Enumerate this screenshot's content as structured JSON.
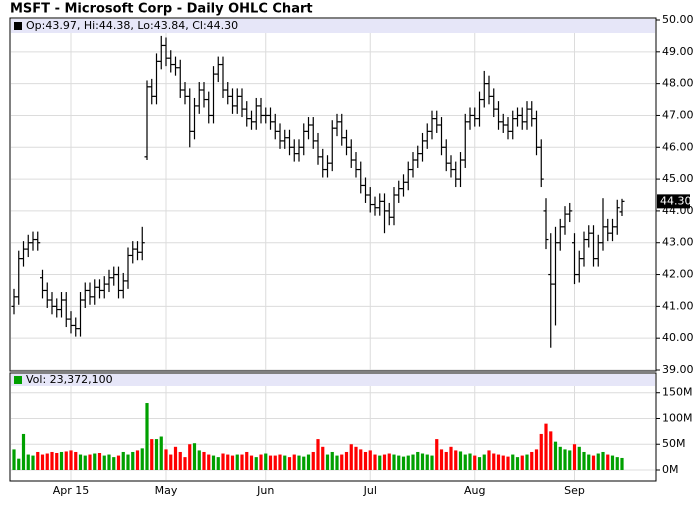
{
  "chart_data": {
    "type": "ohlc",
    "title": "MSFT - Microsoft Corp - Daily OHLC Chart",
    "info": "Op:43.97, Hi:44.38, Lo:43.84, Cl:44.30",
    "last_label": "44.30",
    "categories": [
      null,
      null,
      null,
      null,
      null,
      null,
      null,
      null,
      null,
      null,
      null,
      null,
      "Apr 15",
      null,
      null,
      null,
      null,
      null,
      null,
      null,
      null,
      null,
      null,
      null,
      null,
      null,
      null,
      null,
      null,
      null,
      null,
      null,
      "May",
      null,
      null,
      null,
      null,
      null,
      null,
      null,
      null,
      null,
      null,
      null,
      null,
      null,
      null,
      null,
      null,
      null,
      null,
      null,
      null,
      "Jun",
      null,
      null,
      null,
      null,
      null,
      null,
      null,
      null,
      null,
      null,
      null,
      null,
      null,
      null,
      null,
      null,
      null,
      null,
      null,
      null,
      null,
      "Jul",
      null,
      null,
      null,
      null,
      null,
      null,
      null,
      null,
      null,
      null,
      null,
      null,
      null,
      null,
      null,
      null,
      null,
      null,
      null,
      null,
      null,
      "Aug",
      null,
      null,
      null,
      null,
      null,
      null,
      null,
      null,
      null,
      null,
      null,
      null,
      null,
      null,
      null,
      null,
      null,
      null,
      null,
      null,
      "Sep",
      null,
      null,
      null,
      null,
      null,
      null,
      null,
      null,
      null,
      null
    ],
    "open": [
      41.0,
      41.3,
      42.5,
      42.8,
      43.0,
      43.1,
      41.9,
      41.5,
      41.2,
      41.0,
      40.9,
      41.2,
      40.6,
      40.4,
      40.3,
      41.2,
      41.5,
      41.3,
      41.6,
      41.5,
      41.7,
      41.9,
      42.0,
      41.5,
      41.8,
      42.6,
      42.8,
      42.7,
      45.7,
      47.9,
      47.6,
      48.7,
      49.2,
      48.8,
      48.6,
      48.5,
      47.8,
      47.6,
      46.5,
      47.3,
      47.8,
      47.5,
      47.0,
      48.3,
      48.6,
      47.8,
      47.6,
      47.3,
      47.6,
      47.2,
      46.9,
      46.8,
      47.3,
      47.0,
      47.0,
      46.8,
      46.5,
      46.2,
      46.3,
      46.0,
      45.8,
      46.0,
      46.5,
      46.7,
      46.2,
      45.7,
      45.3,
      45.5,
      46.6,
      46.8,
      46.3,
      46.0,
      45.6,
      45.3,
      44.8,
      44.5,
      44.2,
      44.1,
      44.3,
      44.0,
      43.8,
      44.5,
      44.7,
      44.9,
      45.3,
      45.6,
      45.8,
      46.2,
      46.5,
      46.9,
      46.7,
      46.0,
      45.5,
      45.3,
      45.0,
      45.6,
      46.8,
      47.0,
      46.9,
      47.5,
      48.0,
      47.6,
      47.2,
      46.8,
      46.7,
      46.5,
      46.9,
      47.0,
      46.8,
      47.2,
      46.9,
      46.0,
      44.0,
      42.0,
      41.7,
      43.0,
      43.5,
      43.9,
      43.0,
      42.0,
      42.5,
      43.1,
      43.3,
      42.5,
      43.0,
      43.5,
      43.3,
      43.5,
      43.97
    ],
    "high": [
      41.55,
      42.75,
      43.05,
      43.25,
      43.35,
      43.35,
      42.15,
      41.75,
      41.45,
      41.25,
      41.45,
      41.45,
      40.85,
      40.65,
      41.45,
      41.75,
      41.75,
      41.85,
      41.85,
      41.95,
      42.15,
      42.25,
      42.25,
      42.05,
      42.85,
      43.05,
      43.05,
      43.5,
      48.1,
      48.15,
      48.95,
      49.5,
      49.45,
      49.05,
      48.85,
      48.75,
      48.05,
      47.85,
      47.55,
      48.05,
      48.05,
      47.75,
      48.55,
      48.85,
      48.85,
      48.05,
      47.85,
      47.85,
      47.85,
      47.45,
      47.15,
      47.55,
      47.55,
      47.25,
      47.25,
      47.05,
      46.75,
      46.55,
      46.55,
      46.25,
      46.25,
      46.75,
      46.95,
      46.95,
      46.45,
      45.95,
      45.75,
      46.85,
      47.05,
      47.05,
      46.55,
      46.25,
      45.85,
      45.55,
      45.05,
      44.75,
      44.45,
      44.55,
      44.55,
      44.25,
      44.75,
      44.95,
      45.15,
      45.55,
      45.85,
      46.05,
      46.45,
      46.75,
      47.15,
      47.15,
      46.95,
      46.25,
      45.75,
      45.55,
      45.85,
      47.05,
      47.25,
      47.25,
      47.75,
      48.4,
      48.25,
      47.85,
      47.45,
      47.05,
      46.95,
      47.15,
      47.25,
      47.25,
      47.45,
      47.45,
      47.15,
      46.25,
      44.4,
      43.3,
      43.5,
      43.75,
      44.15,
      44.25,
      43.3,
      42.75,
      43.35,
      43.55,
      43.55,
      43.25,
      44.4,
      43.75,
      43.75,
      44.35,
      44.38
    ],
    "low": [
      40.75,
      41.05,
      42.25,
      42.55,
      42.75,
      42.75,
      41.25,
      40.95,
      40.75,
      40.65,
      40.65,
      40.35,
      40.15,
      40.05,
      40.05,
      40.95,
      41.05,
      41.05,
      41.25,
      41.25,
      41.45,
      41.65,
      41.25,
      41.25,
      41.55,
      42.35,
      42.45,
      42.45,
      45.6,
      47.35,
      47.35,
      48.45,
      48.55,
      48.35,
      48.25,
      47.55,
      47.35,
      46.0,
      46.25,
      47.05,
      47.25,
      46.75,
      46.75,
      48.05,
      47.55,
      47.35,
      47.05,
      47.05,
      46.95,
      46.65,
      46.55,
      46.55,
      46.75,
      46.75,
      46.55,
      46.25,
      45.95,
      45.95,
      45.75,
      45.55,
      45.55,
      45.75,
      46.25,
      45.95,
      45.45,
      45.05,
      45.05,
      45.25,
      46.35,
      46.05,
      45.75,
      45.35,
      45.05,
      44.55,
      44.25,
      43.95,
      43.85,
      43.85,
      43.3,
      43.55,
      43.55,
      44.25,
      44.45,
      44.65,
      45.05,
      45.35,
      45.55,
      45.95,
      46.25,
      46.45,
      45.75,
      45.25,
      45.05,
      44.75,
      44.75,
      45.35,
      46.55,
      46.65,
      46.65,
      47.25,
      47.35,
      46.95,
      46.55,
      46.45,
      46.25,
      46.25,
      46.65,
      46.55,
      46.55,
      46.65,
      45.75,
      44.75,
      42.8,
      39.7,
      40.4,
      42.75,
      43.25,
      43.65,
      41.7,
      41.75,
      42.25,
      42.85,
      42.25,
      42.25,
      42.75,
      43.05,
      43.05,
      43.25,
      43.84
    ],
    "close": [
      41.3,
      42.5,
      42.8,
      43.0,
      43.1,
      43.0,
      41.5,
      41.2,
      41.0,
      40.9,
      41.2,
      40.6,
      40.4,
      40.3,
      41.2,
      41.5,
      41.3,
      41.6,
      41.5,
      41.7,
      41.9,
      42.0,
      41.5,
      41.8,
      42.6,
      42.8,
      42.7,
      43.0,
      47.9,
      47.6,
      48.7,
      49.2,
      48.8,
      48.6,
      48.5,
      47.8,
      47.6,
      46.5,
      47.3,
      47.8,
      47.5,
      47.0,
      48.3,
      48.6,
      47.8,
      47.6,
      47.3,
      47.6,
      47.2,
      46.9,
      46.8,
      47.3,
      47.0,
      47.0,
      46.8,
      46.5,
      46.2,
      46.3,
      46.0,
      45.8,
      46.0,
      46.5,
      46.7,
      46.2,
      45.7,
      45.3,
      45.5,
      46.6,
      46.8,
      46.3,
      46.0,
      45.6,
      45.3,
      44.8,
      44.5,
      44.2,
      44.1,
      44.3,
      44.0,
      43.8,
      44.5,
      44.7,
      44.9,
      45.3,
      45.6,
      45.8,
      46.2,
      46.5,
      46.9,
      46.7,
      46.0,
      45.5,
      45.3,
      45.0,
      45.6,
      46.8,
      47.0,
      46.9,
      47.5,
      48.0,
      47.6,
      47.2,
      46.8,
      46.7,
      46.5,
      46.9,
      47.0,
      46.8,
      47.2,
      46.9,
      46.0,
      45.0,
      43.1,
      41.7,
      43.0,
      43.5,
      43.9,
      44.0,
      42.0,
      42.5,
      43.1,
      43.3,
      42.5,
      43.0,
      43.5,
      43.3,
      43.5,
      44.1,
      44.3
    ],
    "color": "#000000",
    "ylim": [
      39,
      50
    ],
    "yticks": [
      {
        "value": 39,
        "label": "39.00"
      },
      {
        "value": 40,
        "label": "40.00"
      },
      {
        "value": 41,
        "label": "41.00"
      },
      {
        "value": 42,
        "label": "42.00"
      },
      {
        "value": 43,
        "label": "43.00"
      },
      {
        "value": 44,
        "label": "44.00"
      },
      {
        "value": 45,
        "label": "45.00"
      },
      {
        "value": 46,
        "label": "46.00"
      },
      {
        "value": 47,
        "label": "47.00"
      },
      {
        "value": 48,
        "label": "48.00"
      },
      {
        "value": 49,
        "label": "49.00"
      },
      {
        "value": 50,
        "label": "50.00"
      }
    ],
    "grid": true,
    "volume": {
      "label": "Vol: 23,372,100",
      "values": [
        40,
        22,
        70,
        30,
        28,
        35,
        30,
        32,
        35,
        33,
        35,
        36,
        38,
        35,
        30,
        28,
        30,
        32,
        33,
        28,
        30,
        25,
        28,
        35,
        30,
        35,
        38,
        42,
        130,
        60,
        60,
        65,
        40,
        30,
        45,
        35,
        25,
        50,
        52,
        38,
        35,
        30,
        28,
        25,
        32,
        30,
        28,
        30,
        30,
        35,
        28,
        25,
        30,
        32,
        28,
        28,
        30,
        28,
        25,
        30,
        28,
        26,
        30,
        35,
        60,
        45,
        30,
        35,
        28,
        30,
        35,
        50,
        45,
        40,
        35,
        38,
        30,
        28,
        30,
        32,
        30,
        28,
        26,
        28,
        30,
        35,
        32,
        30,
        28,
        60,
        40,
        35,
        45,
        38,
        36,
        30,
        32,
        28,
        25,
        30,
        38,
        32,
        30,
        28,
        26,
        30,
        25,
        28,
        30,
        35,
        40,
        70,
        90,
        75,
        55,
        45,
        40,
        38,
        50,
        45,
        35,
        30,
        28,
        32,
        35,
        30,
        28,
        25,
        23.3721
      ],
      "up_color": "#00a000",
      "down_color": "#ff0000",
      "ylim": [
        0,
        165
      ],
      "yticks": [
        {
          "value": 0,
          "label": "0M"
        },
        {
          "value": 50,
          "label": "50M"
        },
        {
          "value": 100,
          "label": "100M"
        },
        {
          "value": 150,
          "label": "150M"
        }
      ]
    }
  }
}
